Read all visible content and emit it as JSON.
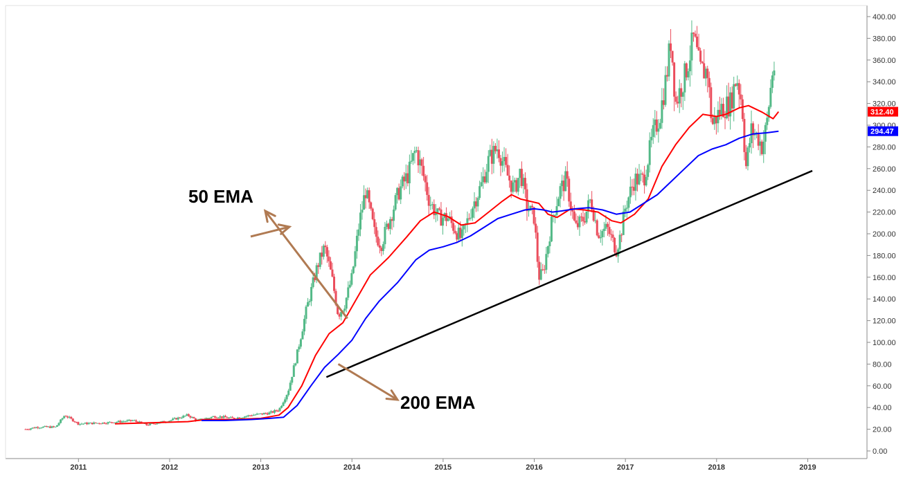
{
  "chart_data": {
    "type": "candlestick",
    "price_axis": {
      "position": "right",
      "range": [
        0,
        400
      ],
      "ticks": [
        "0.00",
        "20.00",
        "40.00",
        "60.00",
        "80.00",
        "100.00",
        "120.00",
        "140.00",
        "160.00",
        "180.00",
        "200.00",
        "220.00",
        "240.00",
        "260.00",
        "280.00",
        "300.00",
        "320.00",
        "340.00",
        "360.00",
        "380.00",
        "400.00"
      ]
    },
    "time_axis": {
      "range": [
        2010.2,
        2019.65
      ],
      "ticks": [
        {
          "label": "2011",
          "value": 2011
        },
        {
          "label": "2012",
          "value": 2012
        },
        {
          "label": "2013",
          "value": 2013
        },
        {
          "label": "2014",
          "value": 2014
        },
        {
          "label": "2015",
          "value": 2015
        },
        {
          "label": "2016",
          "value": 2016
        },
        {
          "label": "2017",
          "value": 2017
        },
        {
          "label": "2018",
          "value": 2018
        },
        {
          "label": "2019",
          "value": 2019
        }
      ]
    },
    "price_path": [
      [
        2010.42,
        20
      ],
      [
        2010.55,
        22
      ],
      [
        2010.75,
        22
      ],
      [
        2010.85,
        33
      ],
      [
        2011.0,
        25
      ],
      [
        2011.3,
        26
      ],
      [
        2011.6,
        28
      ],
      [
        2011.75,
        24
      ],
      [
        2012.0,
        28
      ],
      [
        2012.2,
        33
      ],
      [
        2012.3,
        28
      ],
      [
        2012.5,
        32
      ],
      [
        2012.7,
        30
      ],
      [
        2012.9,
        33
      ],
      [
        2013.1,
        35
      ],
      [
        2013.2,
        38
      ],
      [
        2013.3,
        55
      ],
      [
        2013.4,
        90
      ],
      [
        2013.5,
        130
      ],
      [
        2013.62,
        170
      ],
      [
        2013.7,
        188
      ],
      [
        2013.78,
        160
      ],
      [
        2013.85,
        125
      ],
      [
        2013.92,
        135
      ],
      [
        2014.0,
        160
      ],
      [
        2014.08,
        210
      ],
      [
        2014.15,
        240
      ],
      [
        2014.25,
        200
      ],
      [
        2014.32,
        190
      ],
      [
        2014.42,
        215
      ],
      [
        2014.52,
        240
      ],
      [
        2014.62,
        255
      ],
      [
        2014.7,
        278
      ],
      [
        2014.78,
        255
      ],
      [
        2014.85,
        230
      ],
      [
        2014.95,
        215
      ],
      [
        2015.05,
        215
      ],
      [
        2015.2,
        195
      ],
      [
        2015.32,
        225
      ],
      [
        2015.42,
        245
      ],
      [
        2015.5,
        268
      ],
      [
        2015.6,
        280
      ],
      [
        2015.7,
        255
      ],
      [
        2015.78,
        240
      ],
      [
        2015.85,
        258
      ],
      [
        2015.92,
        225
      ],
      [
        2016.0,
        215
      ],
      [
        2016.05,
        160
      ],
      [
        2016.1,
        165
      ],
      [
        2016.2,
        215
      ],
      [
        2016.28,
        240
      ],
      [
        2016.35,
        250
      ],
      [
        2016.45,
        205
      ],
      [
        2016.55,
        215
      ],
      [
        2016.62,
        232
      ],
      [
        2016.7,
        200
      ],
      [
        2016.8,
        205
      ],
      [
        2016.9,
        185
      ],
      [
        2016.95,
        200
      ],
      [
        2017.0,
        225
      ],
      [
        2017.1,
        250
      ],
      [
        2017.2,
        250
      ],
      [
        2017.3,
        290
      ],
      [
        2017.38,
        310
      ],
      [
        2017.45,
        345
      ],
      [
        2017.5,
        380
      ],
      [
        2017.55,
        320
      ],
      [
        2017.65,
        345
      ],
      [
        2017.75,
        380
      ],
      [
        2017.82,
        350
      ],
      [
        2017.9,
        350
      ],
      [
        2017.95,
        300
      ],
      [
        2018.05,
        315
      ],
      [
        2018.15,
        320
      ],
      [
        2018.22,
        345
      ],
      [
        2018.28,
        320
      ],
      [
        2018.32,
        260
      ],
      [
        2018.38,
        295
      ],
      [
        2018.45,
        290
      ],
      [
        2018.5,
        280
      ],
      [
        2018.55,
        300
      ],
      [
        2018.62,
        355
      ],
      [
        2018.65,
        350
      ]
    ],
    "series": [
      {
        "name": "50 EMA",
        "color": "#ff0000",
        "points": [
          [
            2011.4,
            25
          ],
          [
            2011.8,
            26
          ],
          [
            2012.2,
            27
          ],
          [
            2012.4,
            29
          ],
          [
            2012.7,
            29
          ],
          [
            2013.0,
            30
          ],
          [
            2013.2,
            33
          ],
          [
            2013.3,
            40
          ],
          [
            2013.45,
            60
          ],
          [
            2013.6,
            88
          ],
          [
            2013.75,
            108
          ],
          [
            2013.9,
            118
          ],
          [
            2014.05,
            140
          ],
          [
            2014.2,
            162
          ],
          [
            2014.4,
            178
          ],
          [
            2014.6,
            197
          ],
          [
            2014.75,
            212
          ],
          [
            2014.9,
            220
          ],
          [
            2015.05,
            216
          ],
          [
            2015.2,
            208
          ],
          [
            2015.35,
            210
          ],
          [
            2015.5,
            220
          ],
          [
            2015.65,
            230
          ],
          [
            2015.75,
            236
          ],
          [
            2015.85,
            232
          ],
          [
            2015.95,
            230
          ],
          [
            2016.05,
            228
          ],
          [
            2016.15,
            218
          ],
          [
            2016.25,
            215
          ],
          [
            2016.4,
            223
          ],
          [
            2016.55,
            222
          ],
          [
            2016.7,
            220
          ],
          [
            2016.85,
            212
          ],
          [
            2016.95,
            210
          ],
          [
            2017.1,
            218
          ],
          [
            2017.25,
            232
          ],
          [
            2017.4,
            262
          ],
          [
            2017.55,
            282
          ],
          [
            2017.7,
            298
          ],
          [
            2017.85,
            310
          ],
          [
            2018.0,
            308
          ],
          [
            2018.1,
            310
          ],
          [
            2018.25,
            316
          ],
          [
            2018.35,
            318
          ],
          [
            2018.5,
            312
          ],
          [
            2018.62,
            306
          ],
          [
            2018.68,
            312.4
          ]
        ]
      },
      {
        "name": "200 EMA",
        "color": "#0000ff",
        "points": [
          [
            2012.35,
            28
          ],
          [
            2012.6,
            28
          ],
          [
            2012.9,
            29
          ],
          [
            2013.1,
            30
          ],
          [
            2013.25,
            31
          ],
          [
            2013.4,
            42
          ],
          [
            2013.55,
            60
          ],
          [
            2013.7,
            77
          ],
          [
            2013.85,
            89
          ],
          [
            2014.0,
            102
          ],
          [
            2014.15,
            122
          ],
          [
            2014.3,
            138
          ],
          [
            2014.5,
            155
          ],
          [
            2014.7,
            176
          ],
          [
            2014.85,
            185
          ],
          [
            2015.0,
            188
          ],
          [
            2015.15,
            192
          ],
          [
            2015.3,
            198
          ],
          [
            2015.45,
            206
          ],
          [
            2015.6,
            214
          ],
          [
            2015.75,
            218
          ],
          [
            2015.9,
            222
          ],
          [
            2016.0,
            223
          ],
          [
            2016.1,
            222
          ],
          [
            2016.2,
            220
          ],
          [
            2016.3,
            221
          ],
          [
            2016.45,
            223
          ],
          [
            2016.6,
            224
          ],
          [
            2016.75,
            222
          ],
          [
            2016.9,
            218
          ],
          [
            2017.05,
            220
          ],
          [
            2017.2,
            228
          ],
          [
            2017.35,
            236
          ],
          [
            2017.5,
            248
          ],
          [
            2017.65,
            260
          ],
          [
            2017.8,
            272
          ],
          [
            2017.95,
            278
          ],
          [
            2018.1,
            282
          ],
          [
            2018.25,
            288
          ],
          [
            2018.4,
            292
          ],
          [
            2018.55,
            293
          ],
          [
            2018.68,
            294.47
          ]
        ]
      }
    ],
    "price_tags": [
      {
        "text": "312.40",
        "value": 312.4,
        "color": "#ff0000"
      },
      {
        "text": "294.47",
        "value": 294.47,
        "color": "#0000ff"
      }
    ],
    "trendline": {
      "start": [
        2013.72,
        68
      ],
      "end": [
        2019.05,
        258
      ],
      "color": "#000000"
    },
    "annotations": [
      {
        "text": "50 EMA",
        "target": [
          2013.95,
          122
        ]
      },
      {
        "text": "200 EMA",
        "target": [
          2013.85,
          80
        ]
      }
    ]
  }
}
